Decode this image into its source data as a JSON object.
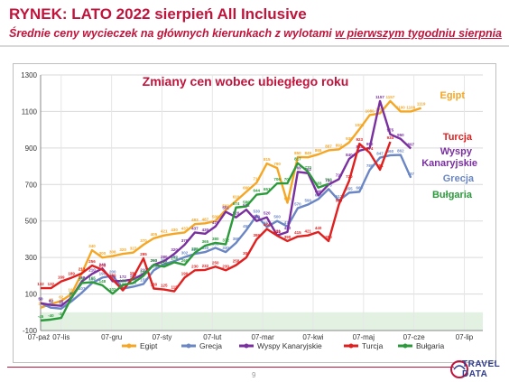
{
  "header": {
    "title": "RYNEK: LATO 2022 sierpień All Inclusive",
    "subtitle_pre": "Średnie ceny wycieczek na głównych kierunkach z wylotami ",
    "subtitle_under": "w pierwszym tygodniu sierpnia"
  },
  "footer": {
    "page_number": "9",
    "logo_line1": "TRAVEL",
    "logo_line2": "DATA"
  },
  "colors": {
    "Egipt": "#f5a623",
    "Grecja": "#6a86c4",
    "Wyspy Kanaryjskie": "#7a2fa0",
    "Turcja": "#e01f1f",
    "Bułgaria": "#2a9a3a",
    "title": "#c0143c"
  },
  "chart_data": {
    "type": "line",
    "title": "Zmiany cen wobec ubiegłego roku",
    "xlabel": "",
    "ylabel": "",
    "ylim": [
      -100,
      1300
    ],
    "yticks": [
      -100,
      100,
      300,
      500,
      700,
      900,
      1100,
      1300
    ],
    "xticks": [
      "07-lis",
      "07-gru",
      "07-sty",
      "07-lut",
      "07-mar",
      "07-kwi",
      "07-maj",
      "07-cze",
      "07-lip"
    ],
    "x_first_label": "07-paź",
    "legend_position": "bottom",
    "grid": true,
    "series": [
      {
        "name": "Egipt",
        "values": [
          25,
          45,
          62,
          100,
          213,
          340,
          300,
          308,
          320,
          327,
          370,
          405,
          421,
          430,
          437,
          483,
          487,
          500,
          560,
          610,
          660,
          710,
          815,
          790,
          600,
          850,
          849,
          865,
          887,
          892,
          930,
          1003,
          1080,
          1090,
          1157,
          1100,
          1100,
          1119
        ]
      },
      {
        "name": "Grecja",
        "values": [
          50,
          25,
          20,
          60,
          107,
          160,
          190,
          200,
          130,
          140,
          155,
          230,
          263,
          280,
          302,
          320,
          330,
          353,
          330,
          380,
          450,
          530,
          467,
          500,
          470,
          570,
          590,
          620,
          675,
          612,
          655,
          660,
          780,
          847,
          860,
          862,
          737
        ]
      },
      {
        "name": "Wyspy Kanaryjskie",
        "values": [
          50,
          40,
          35,
          80,
          168,
          210,
          240,
          170,
          172,
          180,
          210,
          260,
          280,
          320,
          370,
          437,
          430,
          470,
          551,
          520,
          562,
          500,
          520,
          421,
          440,
          769,
          762,
          640,
          700,
          729,
          840,
          885,
          900,
          1157,
          975,
          950,
          897
        ]
      },
      {
        "name": "Turcja",
        "values": [
          132,
          132,
          169,
          189,
          213,
          256,
          233,
          180,
          120,
          191,
          295,
          130,
          125,
          115,
          190,
          230,
          232,
          250,
          230,
          258,
          300,
          399,
          456,
          420,
          390,
          415,
          421,
          440,
          390,
          590,
          720,
          923,
          874,
          781,
          934
        ]
      },
      {
        "name": "Bułgaria",
        "values": [
          -45,
          -40,
          -31,
          80,
          160,
          165,
          148,
          102,
          150,
          160,
          200,
          260,
          250,
          274,
          260,
          326,
          365,
          380,
          372,
          574,
          580,
          644,
          651,
          706,
          707,
          817,
          770,
          683,
          703
        ]
      }
    ],
    "series_labels": {
      "Egipt": "Egipt",
      "Turcja": "Turcja",
      "Wyspy Kanaryjskie": "Wyspy Kanaryjskie",
      "Grecja": "Grecja",
      "Bułgaria": "Bułgaria"
    }
  }
}
